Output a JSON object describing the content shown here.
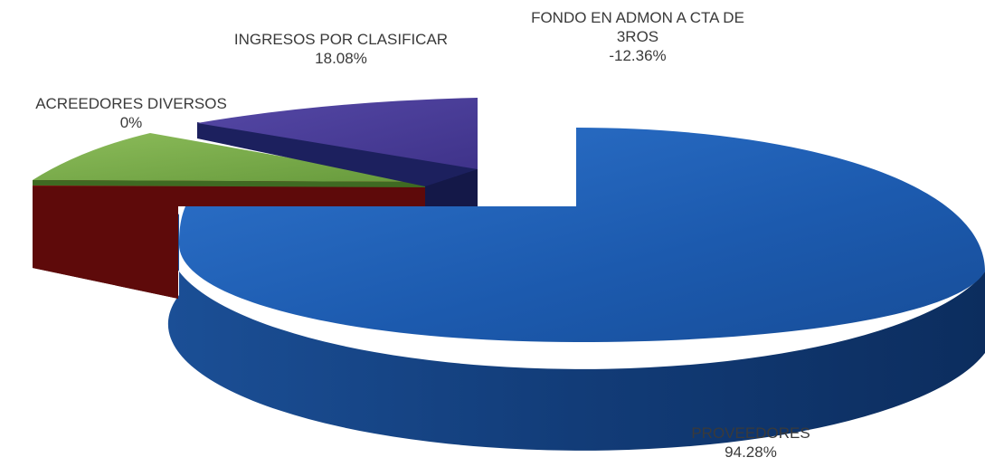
{
  "chart_data": {
    "type": "pie",
    "title": "",
    "slices": [
      {
        "label_lines": [
          "PROVEEDORES"
        ],
        "value_label": "94.28%",
        "value": 94.28,
        "top_color": "#1f5fb8",
        "side_color": "#0f3a7a"
      },
      {
        "label_lines": [
          "ACREEDORES DIVERSOS"
        ],
        "value_label": "0%",
        "value": 0,
        "top_color": "#7e1010",
        "side_color": "#4a0606"
      },
      {
        "label_lines": [
          "ACREEDORES DIVERSOS"
        ],
        "value_label": "0%",
        "value": 0,
        "top_color": "#78a84a",
        "side_color": "#3f6a22"
      },
      {
        "label_lines": [
          "INGRESOS POR CLASIFICAR"
        ],
        "value_label": "18.08%",
        "value": 18.08,
        "top_color": "#4c3f99",
        "side_color": "#1c205e"
      },
      {
        "label_lines": [
          "FONDO EN ADMON A CTA DE",
          "3ROS"
        ],
        "value_label": "-12.36%",
        "value": -12.36,
        "top_color": "#ffffff",
        "side_color": "#ffffff"
      }
    ],
    "legend": "none"
  },
  "labels": {
    "ingresos": {
      "line1": "INGRESOS POR CLASIFICAR",
      "value": "18.08%"
    },
    "fondo": {
      "line1": "FONDO EN ADMON A CTA DE",
      "line2": "3ROS",
      "value": "-12.36%"
    },
    "acreedores": {
      "line1": "ACREEDORES DIVERSOS",
      "value": "0%"
    },
    "proveedores": {
      "line1": "PROVEEDORES",
      "value": "94.28%"
    }
  }
}
